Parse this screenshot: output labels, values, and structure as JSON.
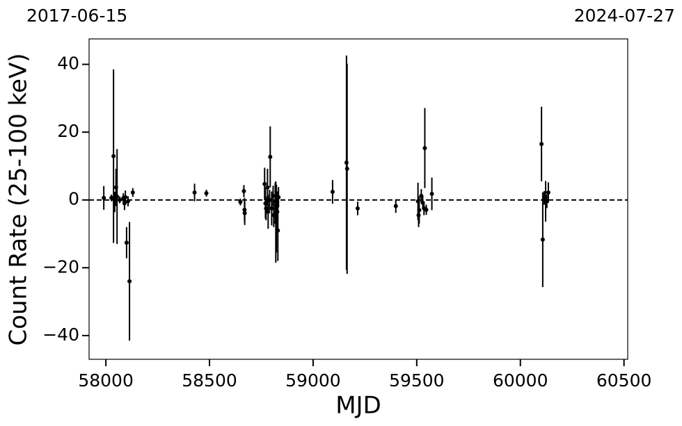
{
  "chart_data": {
    "type": "scatter",
    "top_left_label": "2017-06-15",
    "top_right_label": "2024-07-27",
    "xlabel": "MJD",
    "ylabel": "Count Rate (25-100 keV)",
    "xlim": [
      57919,
      60518
    ],
    "ylim": [
      -47,
      47.5
    ],
    "xticks": [
      58000,
      58500,
      59000,
      59500,
      60000,
      60500
    ],
    "yticks": [
      {
        "value": -40,
        "label": "−40"
      },
      {
        "value": -20,
        "label": "−20"
      },
      0,
      20,
      40
    ],
    "reference_line": 0,
    "series": [
      {
        "color": "#000000",
        "x": [
          57990,
          58027,
          58037,
          58043,
          58049,
          58054,
          58067,
          58084,
          58090,
          58094,
          58100,
          58107,
          58114,
          58130,
          58428,
          58485,
          58649,
          58666,
          58669,
          58670,
          58766,
          58770,
          58773,
          58780,
          58783,
          58790,
          58793,
          58800,
          58807,
          58810,
          58817,
          58820,
          58823,
          58827,
          58830,
          58833,
          59094,
          59161,
          59164,
          59215,
          59399,
          59506,
          59509,
          59512,
          59522,
          59529,
          59535,
          59539,
          59546,
          59573,
          60102,
          60108,
          60115,
          60122,
          60128,
          60135
        ],
        "values": [
          0.6,
          0.6,
          12.9,
          -0.6,
          3.7,
          1,
          0,
          0.5,
          -1,
          0.8,
          -12.6,
          -0.4,
          -24,
          2.2,
          2.2,
          2,
          -0.6,
          2.6,
          -2.9,
          -3.9,
          4.7,
          -1,
          -2.5,
          3.7,
          -3.5,
          0,
          12.7,
          -2.5,
          1.2,
          -4.5,
          -0.4,
          -6.5,
          -5.5,
          -3.5,
          -9,
          0.8,
          2.4,
          11,
          9.2,
          -2.5,
          -1.8,
          -0.4,
          -4.5,
          -3,
          1.2,
          -0.8,
          -2.5,
          15.3,
          -2.9,
          1.8,
          16.5,
          -11.7,
          0.6,
          -0.4,
          -0.4,
          2.2
        ],
        "errors": [
          3.5,
          1,
          25.6,
          3,
          5.5,
          14,
          1,
          1.5,
          2,
          2,
          4.6,
          1.5,
          17.5,
          1.3,
          2.6,
          1,
          1,
          1.8,
          3.5,
          3.5,
          4.8,
          4.5,
          3.5,
          5.5,
          5,
          3,
          9,
          5,
          3,
          3.5,
          5.5,
          12,
          10,
          6,
          9,
          3,
          3.5,
          31.6,
          31,
          2,
          2,
          5.5,
          3.5,
          4,
          2,
          2,
          2,
          11.8,
          1.5,
          4.8,
          11,
          14,
          2,
          6,
          2,
          3
        ]
      }
    ]
  }
}
